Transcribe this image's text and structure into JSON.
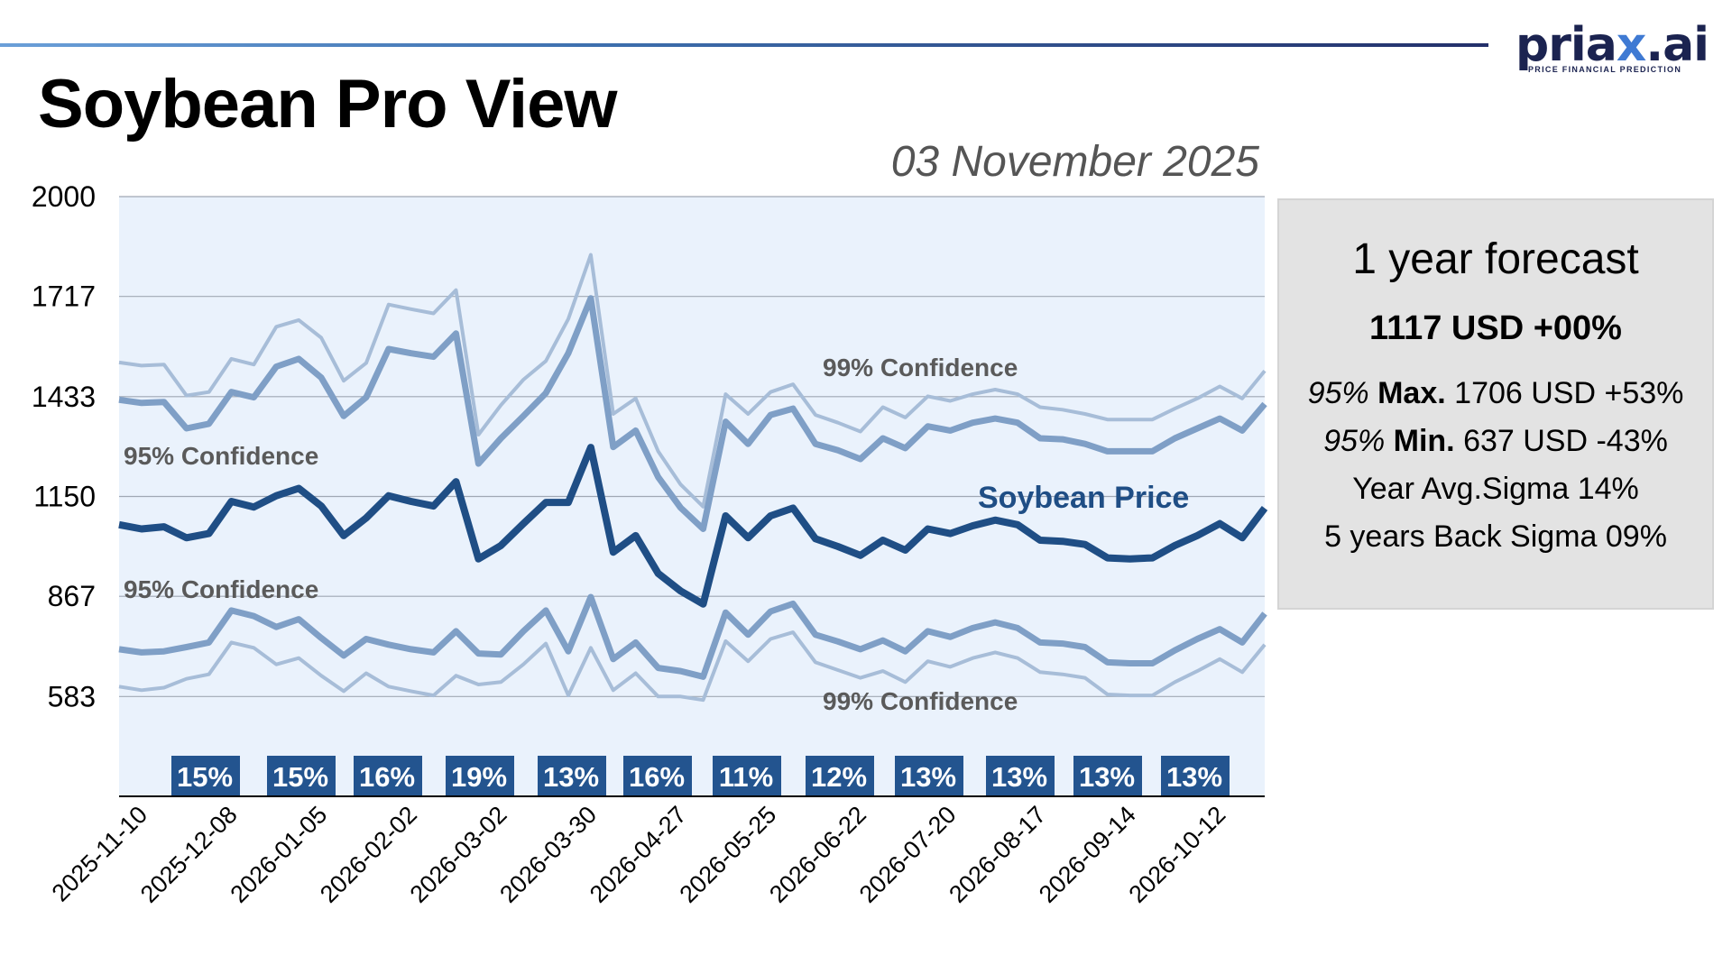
{
  "header": {
    "title": "Soybean Pro View",
    "date": "03 November 2025",
    "logo": {
      "word_prefix": "pria",
      "word_accent": "x",
      "word_suffix": ".ai",
      "tagline": "PRICE FINANCIAL PREDICTION"
    }
  },
  "forecast_panel": {
    "title": "1 year forecast",
    "main_value": "1117 USD +00%",
    "max": {
      "prefix": "95%",
      "label": "Max.",
      "value": "1706 USD +53%"
    },
    "min": {
      "prefix": "95%",
      "label": "Min.",
      "value": "637 USD -43%"
    },
    "year_avg_sigma": "Year Avg.Sigma 14%",
    "back_sigma": "5 years Back Sigma 09%"
  },
  "colors": {
    "price": "#1f4e85",
    "band95": "#7f9fc6",
    "band99": "#a7bdd8",
    "plot_bg": "#eaf2fc",
    "sigma_box": "#23548f",
    "annotation_text": "#5a5a5a"
  },
  "chart_data": {
    "type": "line",
    "title": "Soybean Pro View",
    "xlabel": "",
    "ylabel": "",
    "ylim": [
      300,
      2000
    ],
    "yticks": [
      2000,
      1717,
      1433,
      1150,
      867,
      583
    ],
    "grid": true,
    "x": [
      "2025-11-03",
      "2025-11-10",
      "2025-11-17",
      "2025-11-24",
      "2025-12-01",
      "2025-12-08",
      "2025-12-15",
      "2025-12-22",
      "2025-12-29",
      "2026-01-05",
      "2026-01-12",
      "2026-01-19",
      "2026-01-26",
      "2026-02-02",
      "2026-02-09",
      "2026-02-16",
      "2026-02-23",
      "2026-03-02",
      "2026-03-09",
      "2026-03-16",
      "2026-03-23",
      "2026-03-30",
      "2026-04-06",
      "2026-04-13",
      "2026-04-20",
      "2026-04-27",
      "2026-05-04",
      "2026-05-11",
      "2026-05-18",
      "2026-05-25",
      "2026-06-01",
      "2026-06-08",
      "2026-06-15",
      "2026-06-22",
      "2026-06-29",
      "2026-07-06",
      "2026-07-13",
      "2026-07-20",
      "2026-07-27",
      "2026-08-03",
      "2026-08-10",
      "2026-08-17",
      "2026-08-24",
      "2026-08-31",
      "2026-09-07",
      "2026-09-14",
      "2026-09-21",
      "2026-09-28",
      "2026-10-05",
      "2026-10-12",
      "2026-10-19",
      "2026-10-26"
    ],
    "xtick_labels": [
      "2025-11-10",
      "2025-12-08",
      "2026-01-05",
      "2026-02-02",
      "2026-03-02",
      "2026-03-30",
      "2026-04-27",
      "2026-05-25",
      "2026-06-22",
      "2026-07-20",
      "2026-08-17",
      "2026-09-14",
      "2026-10-12"
    ],
    "series": [
      {
        "name": "99% Confidence upper",
        "role": "band99",
        "values": [
          1530,
          1521,
          1524,
          1436,
          1446,
          1540,
          1524,
          1631,
          1650,
          1600,
          1478,
          1528,
          1694,
          1681,
          1669,
          1735,
          1325,
          1409,
          1481,
          1534,
          1653,
          1835,
          1384,
          1428,
          1278,
          1184,
          1121,
          1440,
          1384,
          1446,
          1468,
          1381,
          1359,
          1334,
          1403,
          1374,
          1434,
          1421,
          1440,
          1453,
          1440,
          1403,
          1396,
          1384,
          1368,
          1368,
          1368,
          1399,
          1428,
          1462,
          1428,
          1506
        ]
      },
      {
        "name": "95% Confidence upper",
        "role": "band95",
        "values": [
          1424,
          1415,
          1418,
          1343,
          1356,
          1446,
          1431,
          1518,
          1540,
          1487,
          1378,
          1431,
          1568,
          1556,
          1546,
          1612,
          1243,
          1315,
          1378,
          1443,
          1556,
          1712,
          1290,
          1337,
          1205,
          1118,
          1058,
          1362,
          1299,
          1381,
          1399,
          1299,
          1281,
          1256,
          1315,
          1287,
          1349,
          1337,
          1359,
          1371,
          1359,
          1315,
          1312,
          1299,
          1278,
          1278,
          1278,
          1315,
          1343,
          1371,
          1337,
          1412
        ]
      },
      {
        "name": "Soybean Price",
        "role": "price",
        "values": [
          1070,
          1058,
          1064,
          1033,
          1045,
          1136,
          1120,
          1152,
          1173,
          1123,
          1039,
          1089,
          1152,
          1136,
          1123,
          1192,
          973,
          1011,
          1073,
          1133,
          1133,
          1289,
          992,
          1039,
          932,
          882,
          845,
          1095,
          1033,
          1095,
          1117,
          1030,
          1008,
          983,
          1026,
          998,
          1058,
          1045,
          1067,
          1083,
          1070,
          1026,
          1023,
          1014,
          976,
          973,
          976,
          1011,
          1039,
          1073,
          1033,
          1117
        ]
      },
      {
        "name": "95% Confidence lower",
        "role": "band95",
        "values": [
          717,
          708,
          711,
          723,
          736,
          827,
          811,
          780,
          802,
          749,
          699,
          746,
          730,
          717,
          708,
          768,
          705,
          702,
          768,
          827,
          711,
          865,
          689,
          736,
          664,
          655,
          639,
          821,
          758,
          824,
          846,
          758,
          739,
          717,
          742,
          711,
          768,
          752,
          777,
          793,
          777,
          736,
          733,
          723,
          680,
          677,
          677,
          714,
          746,
          774,
          736,
          818
        ]
      },
      {
        "name": "99% Confidence lower",
        "role": "band99",
        "values": [
          611,
          601,
          608,
          633,
          646,
          736,
          721,
          674,
          692,
          642,
          598,
          649,
          611,
          598,
          586,
          642,
          617,
          624,
          674,
          733,
          586,
          721,
          601,
          649,
          583,
          583,
          573,
          740,
          683,
          746,
          765,
          680,
          658,
          636,
          655,
          624,
          683,
          667,
          692,
          708,
          692,
          652,
          646,
          636,
          589,
          586,
          586,
          624,
          655,
          689,
          652,
          730
        ]
      }
    ],
    "annotations": [
      {
        "text": "95% Confidence",
        "near": "upper-95-band left"
      },
      {
        "text": "95% Confidence",
        "near": "lower-95-band left"
      },
      {
        "text": "99% Confidence",
        "near": "upper-99-band middle"
      },
      {
        "text": "99% Confidence",
        "near": "lower-99-band middle"
      },
      {
        "text": "Soybean Price",
        "near": "price-line right"
      }
    ],
    "sigma_boxes": [
      "15%",
      "15%",
      "16%",
      "19%",
      "13%",
      "16%",
      "11%",
      "12%",
      "13%",
      "13%",
      "13%",
      "13%"
    ]
  }
}
